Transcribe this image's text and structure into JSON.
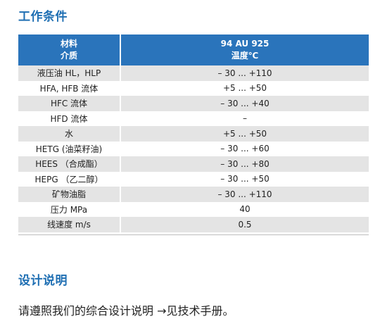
{
  "sections": {
    "conditions_title": "工作条件",
    "design_title": "设计说明",
    "design_text": "请遵照我们的综合设计说明 →见技术手册。"
  },
  "table": {
    "header": {
      "col1_line1": "材料",
      "col1_line2": "介质",
      "col2_line1": "94 AU 925",
      "col2_line2": "温度℃"
    },
    "rows": [
      {
        "name": "液压油 HL，HLP",
        "value": "– 30 ... +110"
      },
      {
        "name": "HFA, HFB 流体",
        "value": "+5 ... +50"
      },
      {
        "name": "HFC 流体",
        "value": "– 30 ... +40"
      },
      {
        "name": "HFD 流体",
        "value": "–"
      },
      {
        "name": "水",
        "value": "+5 ... +50"
      },
      {
        "name": "HETG (油菜籽油)",
        "value": "– 30 ... +60"
      },
      {
        "name": "HEES （合成酯）",
        "value": "– 30 ... +80"
      },
      {
        "name": "HEPG （乙二醇）",
        "value": "– 30 ... +50"
      },
      {
        "name": "矿物油脂",
        "value": "– 30 ... +110"
      },
      {
        "name": "压力 MPa",
        "value": "40"
      },
      {
        "name": "线速度 m/s",
        "value": "0.5"
      }
    ]
  }
}
